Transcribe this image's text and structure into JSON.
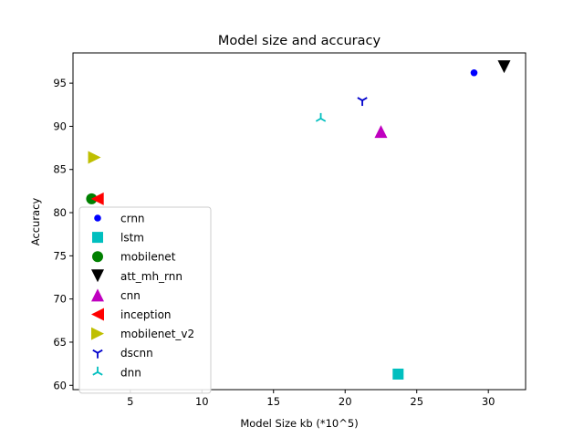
{
  "chart_data": {
    "type": "scatter",
    "title": "Model size and accuracy",
    "xlabel": "Model Size kb (*10^5)",
    "ylabel": "Accuracy",
    "xlim": [
      1.0,
      32.6
    ],
    "ylim": [
      59.5,
      98.5
    ],
    "xticks": [
      5,
      10,
      15,
      20,
      25,
      30
    ],
    "yticks": [
      60,
      65,
      70,
      75,
      80,
      85,
      90,
      95
    ],
    "grid": false,
    "legend_position": "lower-left",
    "series": [
      {
        "name": "crnn",
        "marker": "circle-small",
        "color": "#0000ff",
        "x": 29.0,
        "y": 96.2
      },
      {
        "name": "lstm",
        "marker": "square",
        "color": "#00bfbf",
        "x": 23.7,
        "y": 61.3
      },
      {
        "name": "mobilenet",
        "marker": "circle",
        "color": "#008000",
        "x": 2.3,
        "y": 81.6
      },
      {
        "name": "att_mh_rnn",
        "marker": "triangle-down",
        "color": "#000000",
        "x": 31.1,
        "y": 96.9
      },
      {
        "name": "cnn",
        "marker": "triangle-up",
        "color": "#bf00bf",
        "x": 22.5,
        "y": 89.4
      },
      {
        "name": "inception",
        "marker": "triangle-left",
        "color": "#ff0000",
        "x": 2.7,
        "y": 81.6
      },
      {
        "name": "mobilenet_v2",
        "marker": "triangle-right",
        "color": "#bfbf00",
        "x": 2.5,
        "y": 86.4
      },
      {
        "name": "dscnn",
        "marker": "tri-down",
        "color": "#0000cc",
        "x": 21.2,
        "y": 93.0
      },
      {
        "name": "dnn",
        "marker": "tri-up",
        "color": "#00bfbf",
        "x": 18.3,
        "y": 90.9
      }
    ]
  }
}
